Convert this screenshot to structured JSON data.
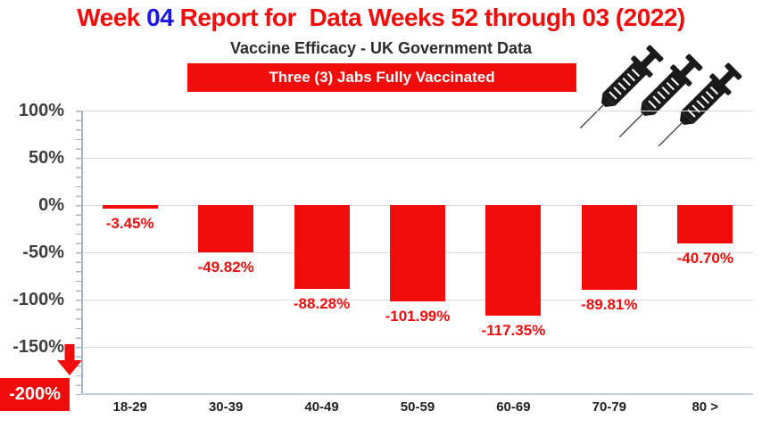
{
  "header": {
    "title_prefix": "Week ",
    "title_number": "04",
    "title_suffix": " Report for  Data Weeks 52 through 03 (2022)",
    "subtitle": "Vaccine Efficacy - UK Government Data",
    "banner_label": "Three (3) Jabs Fully Vaccinated"
  },
  "icons": {
    "top_right": {
      "name": "syringe-icon",
      "count": 3,
      "color": "#1a1a1a"
    },
    "axis_callout": {
      "name": "down-arrow-icon",
      "color": "#f20d0d"
    }
  },
  "colors": {
    "red": "#f20d0d",
    "blue": "#1a16e6",
    "ink": "#2b2b2b",
    "tick-ink": "#3f3f3f",
    "grid": "#dcdcdc",
    "axis": "#a7b6c6"
  },
  "chart_data": {
    "type": "bar",
    "title": "Vaccine Efficacy - UK Government Data",
    "subtitle_banner": "Three (3) Jabs Fully Vaccinated",
    "categories": [
      "18-29",
      "30-39",
      "40-49",
      "50-59",
      "60-69",
      "70-79",
      "80 >"
    ],
    "values": [
      -3.45,
      -49.82,
      -88.28,
      -101.99,
      -117.35,
      -89.81,
      -40.7
    ],
    "value_labels": [
      "-3.45%",
      "-49.82%",
      "-88.28%",
      "-101.99%",
      "-117.35%",
      "-89.81%",
      "-40.70%"
    ],
    "xlabel": "",
    "ylabel": "",
    "ylim": [
      -200,
      100
    ],
    "grid": true,
    "legend_position": "none",
    "bar_color": "#f20d0d",
    "yticks": [
      {
        "label": "100%",
        "value": 100
      },
      {
        "label": "50%",
        "value": 50
      },
      {
        "label": "0%",
        "value": 0
      },
      {
        "label": "-50%",
        "value": -50
      },
      {
        "label": "-100%",
        "value": -100
      },
      {
        "label": "-150%",
        "value": -150
      },
      {
        "label": "-200%",
        "value": -200,
        "highlight": true
      }
    ]
  }
}
